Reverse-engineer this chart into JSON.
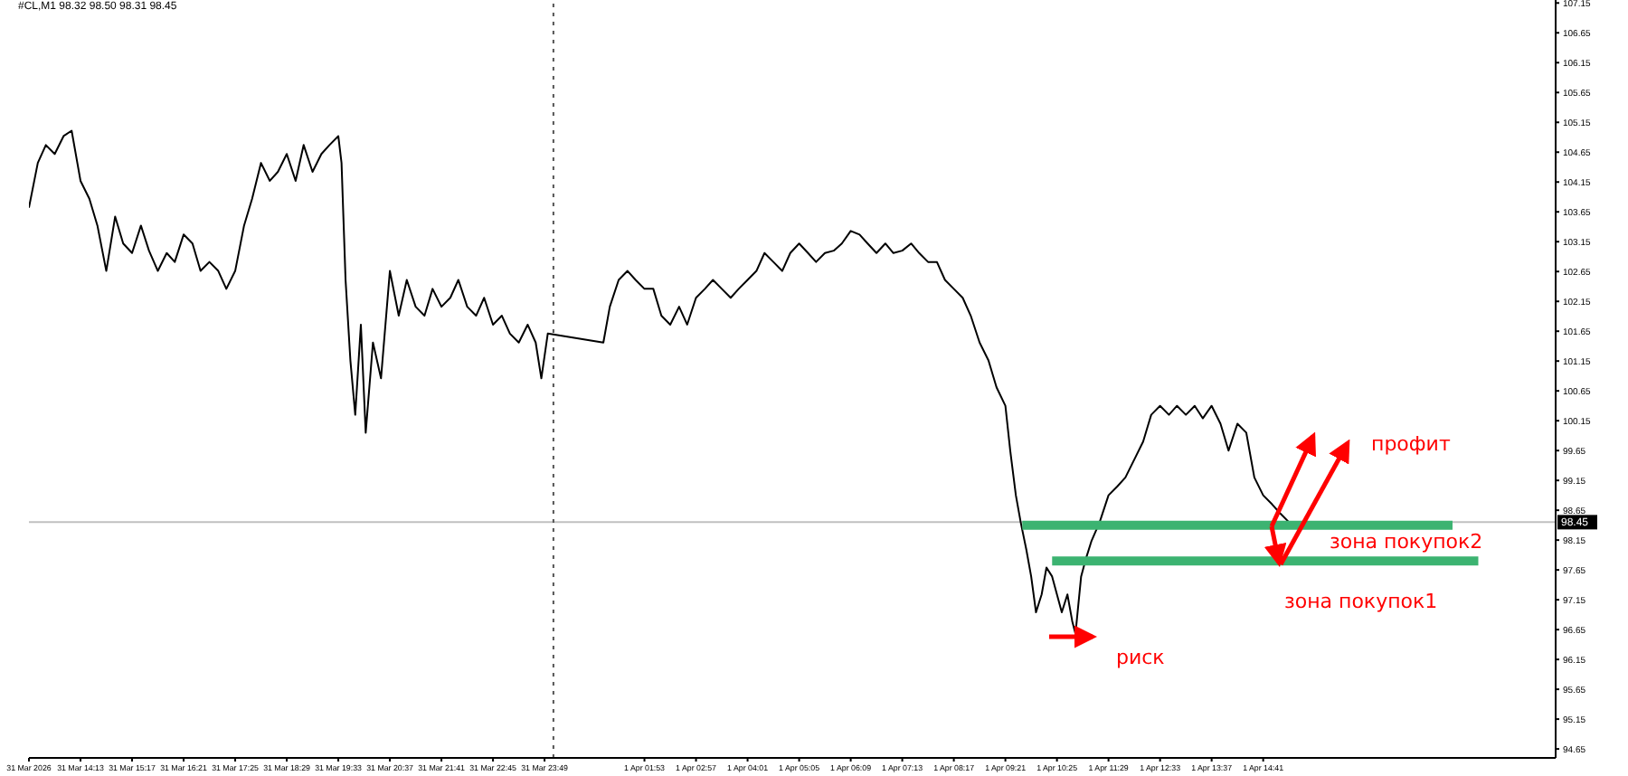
{
  "chart_data": {
    "type": "line",
    "title": "#CL,M1 98.32 98.50 98.31 98.45",
    "xlim": [
      "2026-03-31T13:09",
      "2026-04-01T20:44"
    ],
    "xticks": [
      {
        "value": "2026-03-31T13:09",
        "label": "31 Mar 2026"
      },
      {
        "value": "2026-03-31T14:13",
        "label": "31 Mar 14:13"
      },
      {
        "value": "2026-03-31T15:17",
        "label": "31 Mar 15:17"
      },
      {
        "value": "2026-03-31T16:21",
        "label": "31 Mar 16:21"
      },
      {
        "value": "2026-03-31T17:25",
        "label": "31 Mar 17:25"
      },
      {
        "value": "2026-03-31T18:29",
        "label": "31 Mar 18:29"
      },
      {
        "value": "2026-03-31T19:33",
        "label": "31 Mar 19:33"
      },
      {
        "value": "2026-03-31T20:37",
        "label": "31 Mar 20:37"
      },
      {
        "value": "2026-03-31T21:41",
        "label": "31 Mar 21:41"
      },
      {
        "value": "2026-03-31T22:45",
        "label": "31 Mar 22:45"
      },
      {
        "value": "2026-03-31T23:49",
        "label": "31 Mar 23:49"
      },
      {
        "value": "2026-04-01T01:53",
        "label": "1 Apr 01:53"
      },
      {
        "value": "2026-04-01T02:57",
        "label": "1 Apr 02:57"
      },
      {
        "value": "2026-04-01T04:01",
        "label": "1 Apr 04:01"
      },
      {
        "value": "2026-04-01T05:05",
        "label": "1 Apr 05:05"
      },
      {
        "value": "2026-04-01T06:09",
        "label": "1 Apr 06:09"
      },
      {
        "value": "2026-04-01T07:13",
        "label": "1 Apr 07:13"
      },
      {
        "value": "2026-04-01T08:17",
        "label": "1 Apr 08:17"
      },
      {
        "value": "2026-04-01T09:21",
        "label": "1 Apr 09:21"
      },
      {
        "value": "2026-04-01T10:25",
        "label": "1 Apr 10:25"
      },
      {
        "value": "2026-04-01T11:29",
        "label": "1 Apr 11:29"
      },
      {
        "value": "2026-04-01T12:33",
        "label": "1 Apr 12:33"
      },
      {
        "value": "2026-04-01T13:37",
        "label": "1 Apr 13:37"
      },
      {
        "value": "2026-04-01T14:41",
        "label": "1 Apr 14:41"
      }
    ],
    "ylim": [
      94.5,
      107.2
    ],
    "yticks": [
      94.65,
      95.15,
      95.65,
      96.15,
      96.65,
      97.15,
      97.65,
      98.15,
      98.65,
      99.15,
      99.65,
      100.15,
      100.65,
      101.15,
      101.65,
      102.15,
      102.65,
      103.15,
      103.65,
      104.15,
      104.65,
      105.15,
      105.65,
      106.15,
      106.65,
      107.15
    ],
    "grid": false,
    "marker": "none",
    "line_style": "solid",
    "series": [
      {
        "color": "#000000",
        "x": [
          "2026-03-31T13:09",
          "2026-03-31T13:20",
          "2026-03-31T13:30",
          "2026-03-31T13:41",
          "2026-03-31T13:52",
          "2026-03-31T14:02",
          "2026-03-31T14:13",
          "2026-03-31T14:24",
          "2026-03-31T14:34",
          "2026-03-31T14:45",
          "2026-03-31T14:56",
          "2026-03-31T15:06",
          "2026-03-31T15:17",
          "2026-03-31T15:28",
          "2026-03-31T15:38",
          "2026-03-31T15:49",
          "2026-03-31T16:00",
          "2026-03-31T16:10",
          "2026-03-31T16:21",
          "2026-03-31T16:32",
          "2026-03-31T16:42",
          "2026-03-31T16:53",
          "2026-03-31T17:04",
          "2026-03-31T17:14",
          "2026-03-31T17:25",
          "2026-03-31T17:36",
          "2026-03-31T17:46",
          "2026-03-31T17:57",
          "2026-03-31T18:08",
          "2026-03-31T18:18",
          "2026-03-31T18:29",
          "2026-03-31T18:40",
          "2026-03-31T18:50",
          "2026-03-31T19:01",
          "2026-03-31T19:12",
          "2026-03-31T19:22",
          "2026-03-31T19:33",
          "2026-03-31T19:37",
          "2026-03-31T19:42",
          "2026-03-31T19:48",
          "2026-03-31T19:54",
          "2026-03-31T20:01",
          "2026-03-31T20:07",
          "2026-03-31T20:16",
          "2026-03-31T20:26",
          "2026-03-31T20:37",
          "2026-03-31T20:48",
          "2026-03-31T20:58",
          "2026-03-31T21:09",
          "2026-03-31T21:20",
          "2026-03-31T21:30",
          "2026-03-31T21:41",
          "2026-03-31T21:52",
          "2026-03-31T22:02",
          "2026-03-31T22:13",
          "2026-03-31T22:24",
          "2026-03-31T22:34",
          "2026-03-31T22:45",
          "2026-03-31T22:56",
          "2026-03-31T23:06",
          "2026-03-31T23:17",
          "2026-03-31T23:28",
          "2026-03-31T23:38",
          "2026-03-31T23:45",
          "2026-03-31T23:53",
          "2026-04-01T01:02",
          "2026-04-01T01:10",
          "2026-04-01T01:21",
          "2026-04-01T01:32",
          "2026-04-01T01:42",
          "2026-04-01T01:53",
          "2026-04-01T02:04",
          "2026-04-01T02:14",
          "2026-04-01T02:25",
          "2026-04-01T02:36",
          "2026-04-01T02:46",
          "2026-04-01T02:57",
          "2026-04-01T03:08",
          "2026-04-01T03:18",
          "2026-04-01T03:29",
          "2026-04-01T03:40",
          "2026-04-01T03:50",
          "2026-04-01T04:01",
          "2026-04-01T04:12",
          "2026-04-01T04:22",
          "2026-04-01T04:33",
          "2026-04-01T04:44",
          "2026-04-01T04:54",
          "2026-04-01T05:05",
          "2026-04-01T05:16",
          "2026-04-01T05:26",
          "2026-04-01T05:37",
          "2026-04-01T05:48",
          "2026-04-01T05:58",
          "2026-04-01T06:09",
          "2026-04-01T06:20",
          "2026-04-01T06:30",
          "2026-04-01T06:41",
          "2026-04-01T06:52",
          "2026-04-01T07:02",
          "2026-04-01T07:13",
          "2026-04-01T07:24",
          "2026-04-01T07:34",
          "2026-04-01T07:45",
          "2026-04-01T07:56",
          "2026-04-01T08:06",
          "2026-04-01T08:17",
          "2026-04-01T08:28",
          "2026-04-01T08:38",
          "2026-04-01T08:49",
          "2026-04-01T09:00",
          "2026-04-01T09:10",
          "2026-04-01T09:21",
          "2026-04-01T09:27",
          "2026-04-01T09:34",
          "2026-04-01T09:40",
          "2026-04-01T09:47",
          "2026-04-01T09:53",
          "2026-04-01T09:59",
          "2026-04-01T10:06",
          "2026-04-01T10:12",
          "2026-04-01T10:19",
          "2026-04-01T10:25",
          "2026-04-01T10:31",
          "2026-04-01T10:38",
          "2026-04-01T10:44",
          "2026-04-01T10:48",
          "2026-04-01T10:55",
          "2026-04-01T11:01",
          "2026-04-01T11:08",
          "2026-04-01T11:18",
          "2026-04-01T11:29",
          "2026-04-01T11:40",
          "2026-04-01T11:50",
          "2026-04-01T12:01",
          "2026-04-01T12:12",
          "2026-04-01T12:22",
          "2026-04-01T12:33",
          "2026-04-01T12:44",
          "2026-04-01T12:54",
          "2026-04-01T13:05",
          "2026-04-01T13:16",
          "2026-04-01T13:26",
          "2026-04-01T13:37",
          "2026-04-01T13:48",
          "2026-04-01T13:58",
          "2026-04-01T14:09",
          "2026-04-01T14:20",
          "2026-04-01T14:30",
          "2026-04-01T14:41",
          "2026-04-01T14:52",
          "2026-04-01T15:02",
          "2026-04-01T15:13"
        ],
        "values": [
          103.72,
          104.47,
          104.77,
          104.62,
          104.92,
          105.01,
          104.17,
          103.87,
          103.42,
          102.66,
          103.57,
          103.12,
          102.96,
          103.42,
          103.0,
          102.66,
          102.96,
          102.81,
          103.27,
          103.12,
          102.66,
          102.81,
          102.66,
          102.36,
          102.66,
          103.42,
          103.87,
          104.47,
          104.17,
          104.32,
          104.62,
          104.17,
          104.77,
          104.32,
          104.62,
          104.77,
          104.92,
          104.47,
          102.51,
          101.16,
          100.25,
          101.76,
          99.95,
          101.46,
          100.86,
          102.66,
          101.91,
          102.51,
          102.06,
          101.91,
          102.36,
          102.06,
          102.21,
          102.51,
          102.06,
          101.91,
          102.21,
          101.76,
          101.91,
          101.61,
          101.46,
          101.76,
          101.46,
          100.86,
          101.61,
          101.46,
          102.06,
          102.51,
          102.66,
          102.51,
          102.36,
          102.36,
          101.91,
          101.76,
          102.06,
          101.76,
          102.21,
          102.36,
          102.51,
          102.36,
          102.21,
          102.36,
          102.51,
          102.66,
          102.96,
          102.81,
          102.66,
          102.96,
          103.12,
          102.96,
          102.81,
          102.96,
          103.0,
          103.12,
          103.33,
          103.27,
          103.12,
          102.96,
          103.12,
          102.96,
          103.0,
          103.12,
          102.96,
          102.81,
          102.81,
          102.51,
          102.36,
          102.21,
          101.91,
          101.46,
          101.16,
          100.71,
          100.4,
          99.65,
          98.9,
          98.45,
          97.99,
          97.54,
          96.94,
          97.24,
          97.69,
          97.54,
          97.24,
          96.94,
          97.24,
          96.79,
          96.58,
          97.54,
          97.84,
          98.14,
          98.45,
          98.9,
          99.05,
          99.2,
          99.5,
          99.8,
          100.25,
          100.4,
          100.25,
          100.4,
          100.25,
          100.4,
          100.19,
          100.4,
          100.1,
          99.65,
          100.1,
          99.95,
          99.2,
          98.9,
          98.75,
          98.6,
          98.45
        ]
      },
      {
        "color": "#3cb371",
        "x": [
          "2026-04-01T09:42",
          "2026-04-01T18:36"
        ],
        "values": [
          98.4,
          98.4
        ]
      },
      {
        "color": "#3cb371",
        "x": [
          "2026-04-01T10:19",
          "2026-04-01T19:08"
        ],
        "values": [
          97.8,
          97.8
        ]
      }
    ],
    "ref_lines": [
      {
        "axis": "y",
        "value": 98.45,
        "label": "98.45",
        "color": "#c0c0c0",
        "line_style": "solid"
      },
      {
        "axis": "x",
        "value": "2026-04-01T00:00",
        "color": "#555555",
        "line_style": "dotted"
      }
    ],
    "annotations": [
      "профит",
      "зона покупок2",
      "зона покупок1",
      "риск"
    ]
  }
}
